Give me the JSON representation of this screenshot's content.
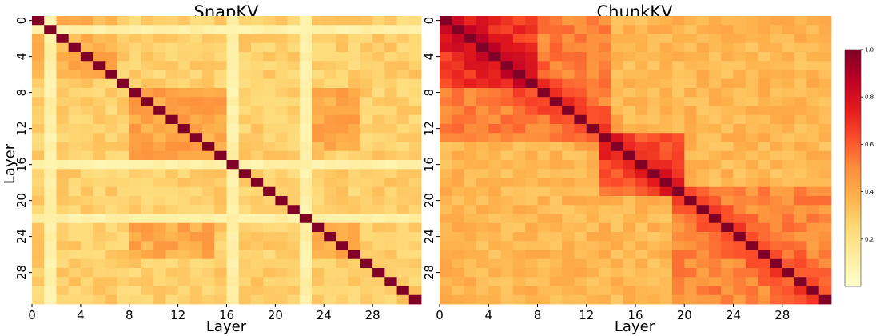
{
  "chart_data": [
    {
      "type": "heatmap",
      "title": "SnapKV",
      "xlabel": "Layer",
      "ylabel": "Layer",
      "size": 32,
      "ticks": [
        0,
        4,
        8,
        12,
        16,
        20,
        24,
        28
      ],
      "tick_labels": [
        "0",
        "4",
        "8",
        "12",
        "16",
        "20",
        "24",
        "28"
      ],
      "diagonal": 1.0,
      "base_value": 0.28,
      "base_value_note": "approximate typical off-diagonal similarity",
      "bright_rows_cols": [
        1,
        16,
        22
      ],
      "bright_value": 0.1,
      "hot_blocks": [
        {
          "rows": [
            0,
            6
          ],
          "cols": [
            0,
            6
          ],
          "value": 0.38
        },
        {
          "rows": [
            8,
            15
          ],
          "cols": [
            8,
            15
          ],
          "value": 0.42
        },
        {
          "rows": [
            23,
            26
          ],
          "cols": [
            8,
            14
          ],
          "value": 0.4
        },
        {
          "rows": [
            23,
            26
          ],
          "cols": [
            23,
            26
          ],
          "value": 0.42
        }
      ]
    },
    {
      "type": "heatmap",
      "title": "ChunkKV",
      "xlabel": "Layer",
      "ylabel": "",
      "size": 32,
      "ticks": [
        0,
        4,
        8,
        12,
        16,
        20,
        24,
        28
      ],
      "tick_labels": [
        "0",
        "4",
        "8",
        "12",
        "16",
        "20",
        "24",
        "28"
      ],
      "diagonal": 1.0,
      "base_value": 0.36,
      "base_value_note": "approximate typical off-diagonal similarity",
      "hot_blocks": [
        {
          "rows": [
            0,
            7
          ],
          "cols": [
            0,
            7
          ],
          "value": 0.68
        },
        {
          "rows": [
            7,
            13
          ],
          "cols": [
            0,
            13
          ],
          "value": 0.52
        },
        {
          "rows": [
            13,
            19
          ],
          "cols": [
            13,
            19
          ],
          "value": 0.6
        },
        {
          "rows": [
            19,
            31
          ],
          "cols": [
            19,
            31
          ],
          "value": 0.5
        }
      ],
      "near_diagonal_boost": 0.18
    }
  ],
  "colorbar": {
    "min": 0.0,
    "max": 1.0,
    "ticks": [
      0.2,
      0.4,
      0.6,
      0.8,
      1.0
    ],
    "tick_labels": [
      "0.2",
      "0.4",
      "0.6",
      "0.8",
      "1.0"
    ],
    "colors": [
      "#ffffcc",
      "#ffeda0",
      "#fed976",
      "#feb24c",
      "#fd8d3c",
      "#fc4e2a",
      "#e31a1c",
      "#bd0026",
      "#800026"
    ]
  }
}
